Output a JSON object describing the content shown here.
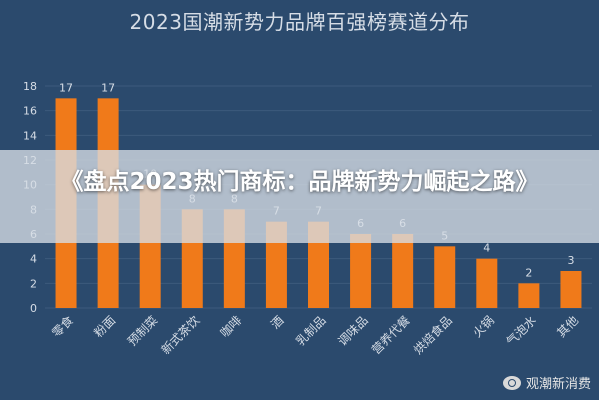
{
  "title": "2023国潮新势力品牌百强榜赛道分布",
  "headline": "《盘点2023热门商标：品牌新势力崛起之路》",
  "watermark": {
    "text": "观潮新消费",
    "icon": "weibo-icon"
  },
  "colors": {
    "background": "#2b4a6d",
    "bar": "#f07a1a",
    "text": "#d6dde6",
    "grid": "#3d5b7d"
  },
  "chart_data": {
    "type": "bar",
    "title": "2023国潮新势力品牌百强榜赛道分布",
    "categories": [
      "零食",
      "粉面",
      "预制菜",
      "新式茶饮",
      "咖啡",
      "酒",
      "乳制品",
      "调味品",
      "营养代餐",
      "烘焙食品",
      "火锅",
      "气泡水",
      "其他"
    ],
    "values": [
      17,
      17,
      10,
      8,
      8,
      7,
      7,
      6,
      6,
      5,
      4,
      2,
      3
    ],
    "ylim": [
      0,
      18
    ],
    "yticks": [
      0,
      2,
      4,
      6,
      8,
      10,
      12,
      14,
      16,
      18
    ],
    "xlabel": "",
    "ylabel": "",
    "grid": true
  }
}
